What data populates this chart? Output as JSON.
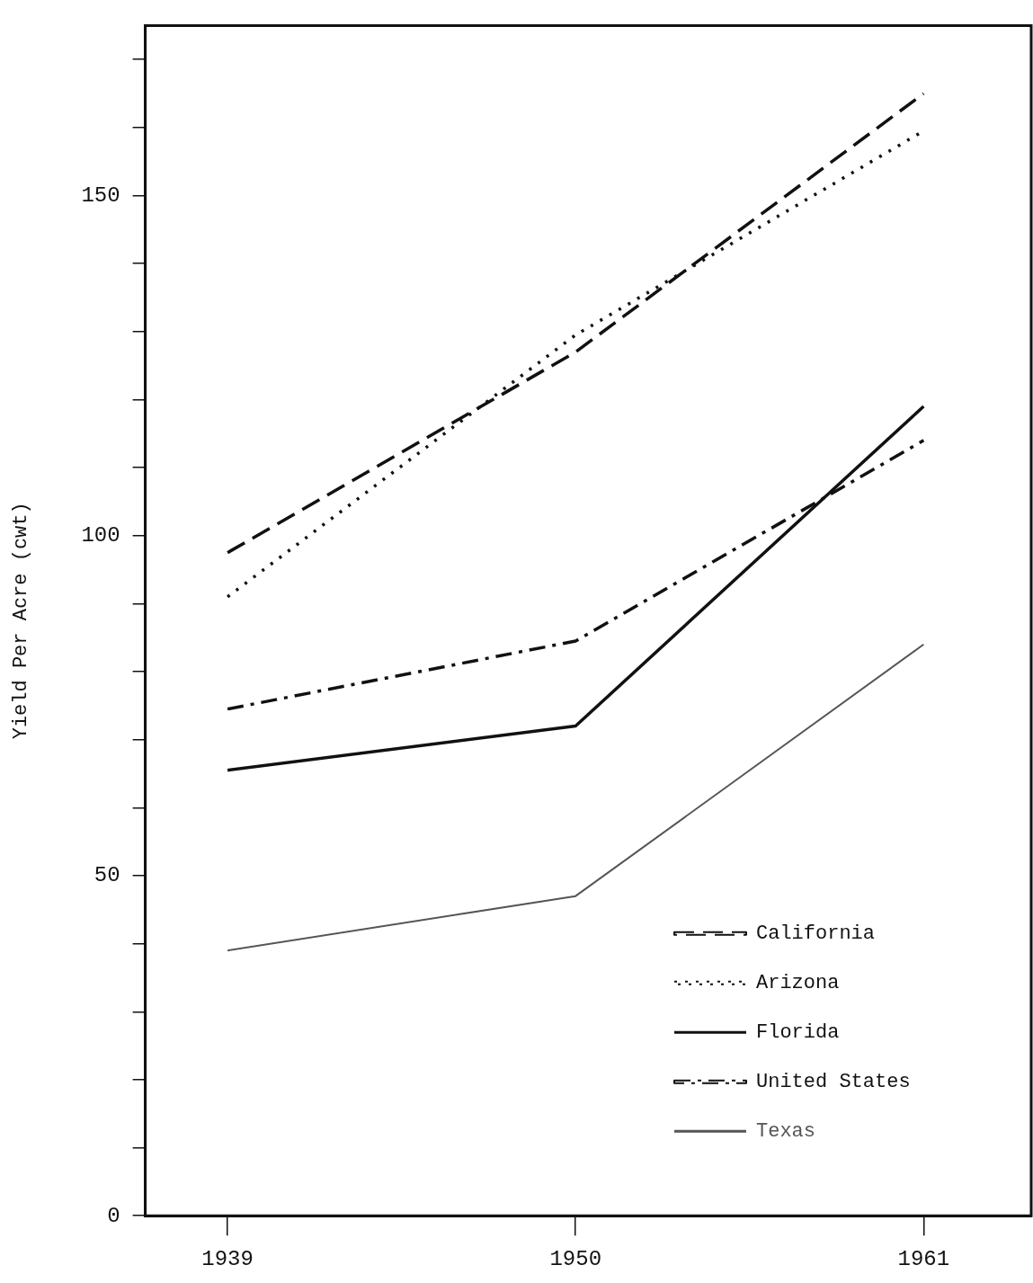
{
  "chart_data": {
    "type": "line",
    "ylabel": "Yield Per Acre (cwt)",
    "x": [
      1939,
      1950,
      1961
    ],
    "series": [
      {
        "name": "California",
        "color": "#111111",
        "line_style": "dashed",
        "values": [
          97.5,
          127,
          165
        ]
      },
      {
        "name": "Arizona",
        "color": "#111111",
        "line_style": "dotted",
        "values": [
          91,
          129.5,
          159.5
        ]
      },
      {
        "name": "Florida",
        "color": "#111111",
        "line_style": "solid",
        "values": [
          65.5,
          72,
          119
        ]
      },
      {
        "name": "United States",
        "color": "#111111",
        "line_style": "dashdot",
        "values": [
          74.5,
          84.5,
          114
        ]
      },
      {
        "name": "Texas",
        "color": "#555555",
        "line_style": "solid",
        "values": [
          39,
          47,
          84
        ]
      }
    ],
    "xlim": [
      1936.4,
      1964.4
    ],
    "xticks": [
      1939,
      1950,
      1961
    ],
    "ylim": [
      0,
      175
    ],
    "yticks": [
      0,
      {
        "value": 10,
        "label": null
      },
      {
        "value": 20,
        "label": null
      },
      {
        "value": 30,
        "label": null
      },
      {
        "value": 40,
        "label": null
      },
      50,
      {
        "value": 60,
        "label": null
      },
      {
        "value": 70,
        "label": null
      },
      {
        "value": 80,
        "label": null
      },
      {
        "value": 90,
        "label": null
      },
      100,
      {
        "value": 110,
        "label": null
      },
      {
        "value": 120,
        "label": null
      },
      {
        "value": 130,
        "label": null
      },
      {
        "value": 140,
        "label": null
      },
      150,
      {
        "value": 160,
        "label": null
      },
      {
        "value": 170,
        "label": null
      }
    ],
    "grid": false,
    "legend": "bottom right",
    "marker": "none"
  }
}
